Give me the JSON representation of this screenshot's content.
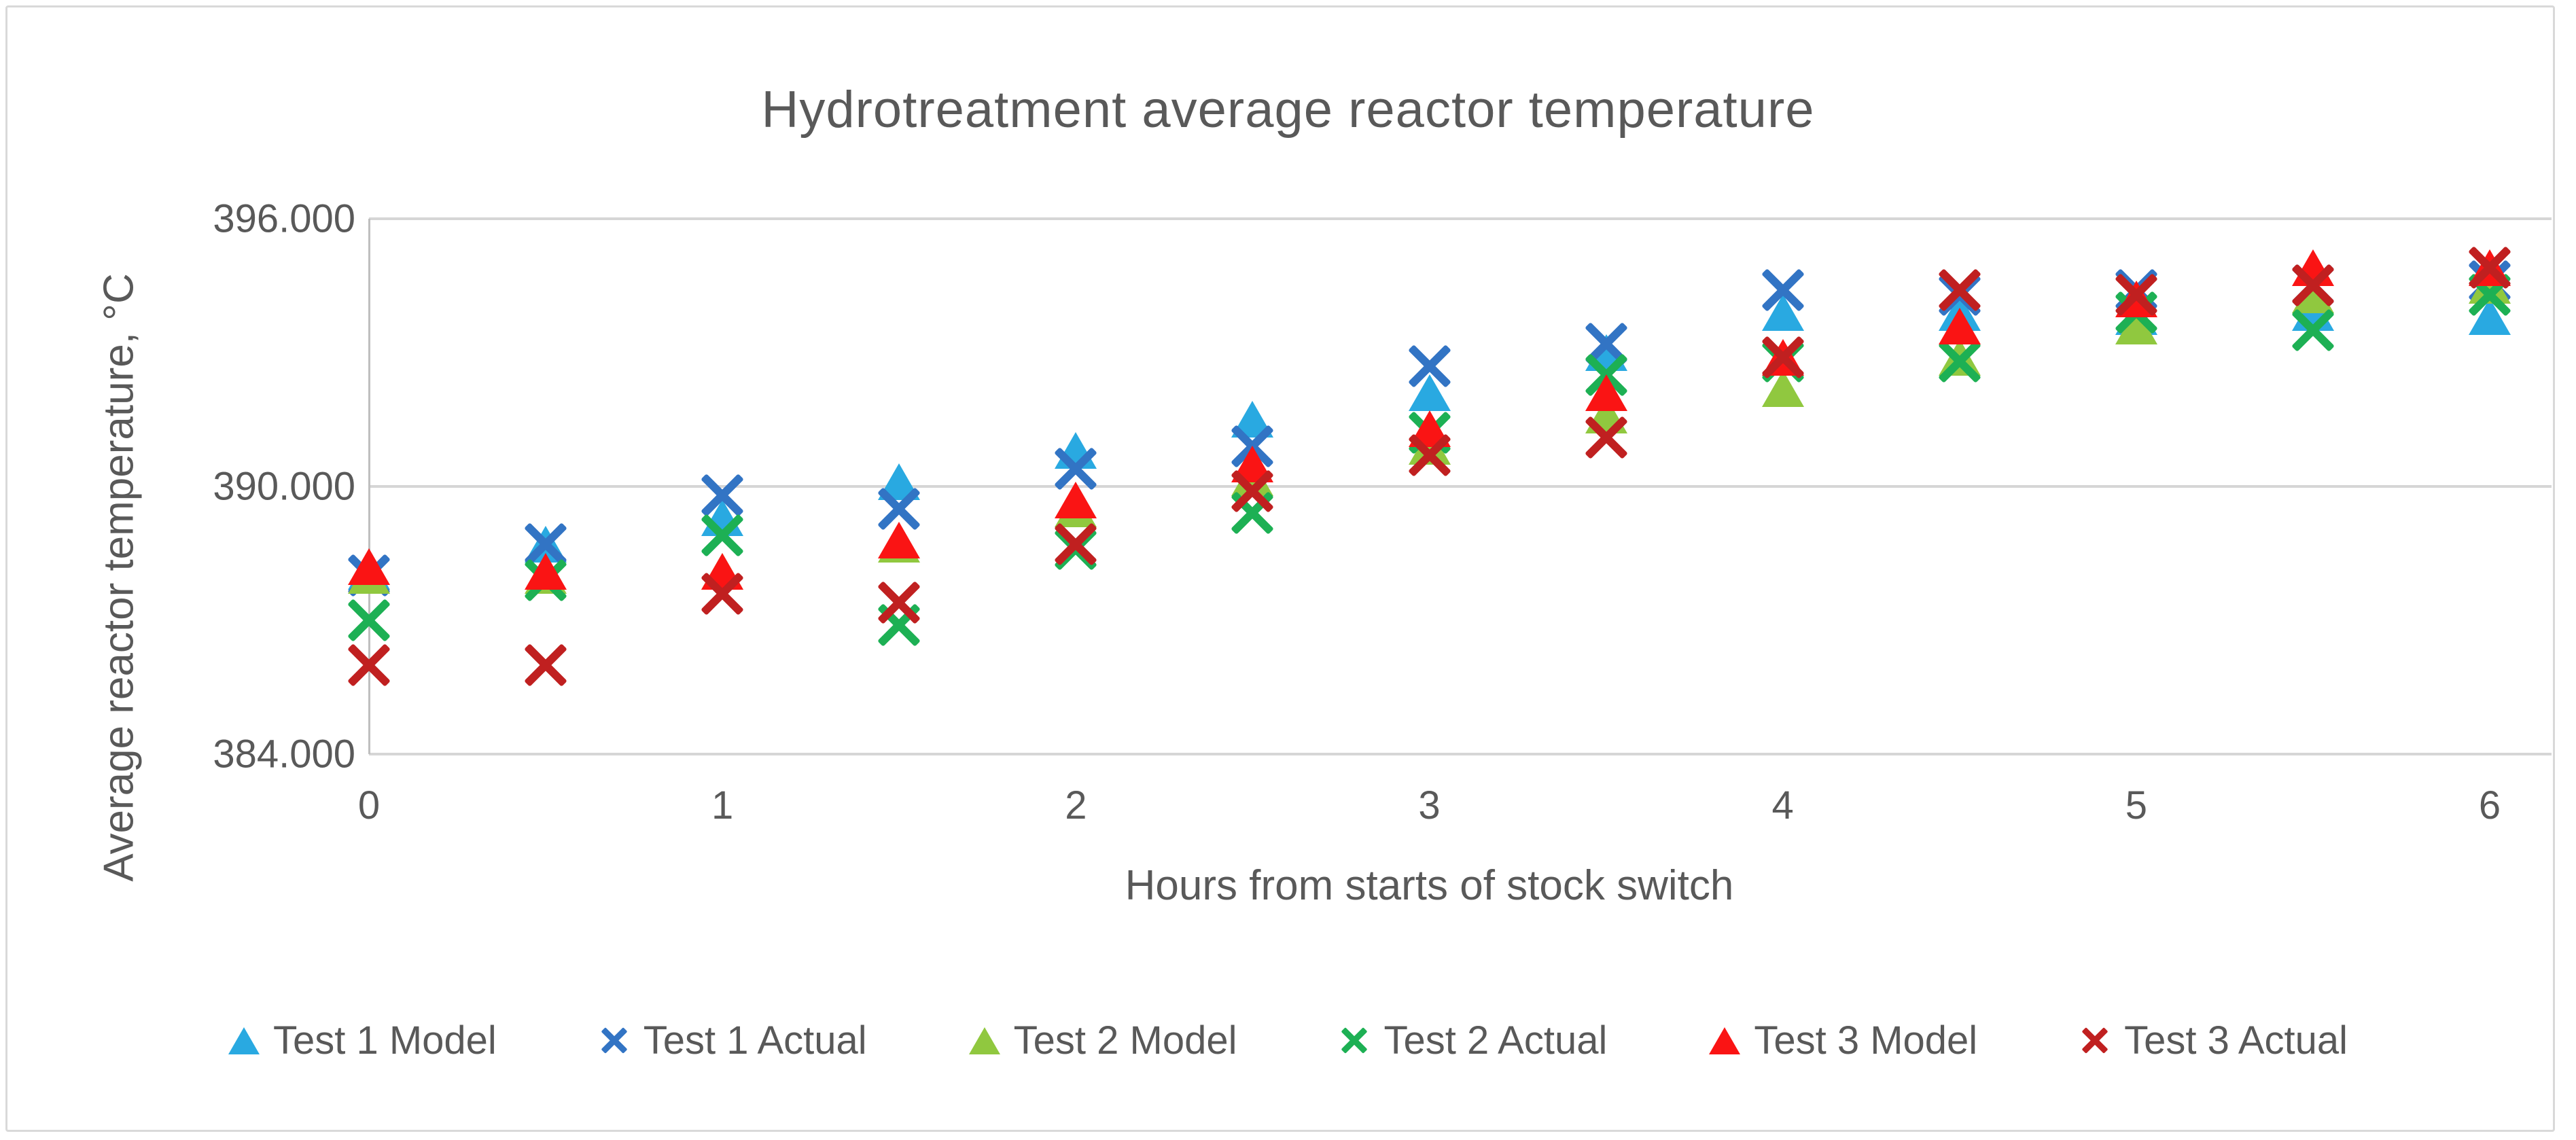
{
  "title": "Hydrotreatment average reactor temperature",
  "axes": {
    "x_label": "Hours from starts of stock switch",
    "y_label": "Average reactor temperature, °C"
  },
  "colors": {
    "gridline": "#D6D6D6",
    "axis_line": "#BFBFBF",
    "text": "#595959"
  },
  "chart_data": {
    "type": "scatter",
    "title": "Hydrotreatment average reactor temperature",
    "xlabel": "Hours from starts of stock switch",
    "ylabel": "Average reactor temperature, °C",
    "xlim": [
      0,
      6
    ],
    "ylim": [
      384,
      396
    ],
    "grid": "horizontal-only",
    "legend_position": "bottom",
    "y_ticks": [
      {
        "value": 396,
        "label": "396.000"
      },
      {
        "value": 390,
        "label": "390.000"
      },
      {
        "value": 384,
        "label": "384.000"
      }
    ],
    "x_ticks": [
      {
        "value": 0,
        "label": "0"
      },
      {
        "value": 1,
        "label": "1"
      },
      {
        "value": 2,
        "label": "2"
      },
      {
        "value": 3,
        "label": "3"
      },
      {
        "value": 4,
        "label": "4"
      },
      {
        "value": 5,
        "label": "5"
      },
      {
        "value": 6,
        "label": "6"
      }
    ],
    "x": [
      0,
      0.5,
      1,
      1.5,
      2,
      2.5,
      3,
      3.5,
      4,
      4.5,
      5,
      5.5,
      6
    ],
    "series": [
      {
        "name": "Test 1 Model",
        "marker": "triangle",
        "color": "#29A9E1",
        "values": [
          388.1,
          388.7,
          389.3,
          390.1,
          390.8,
          391.5,
          392.1,
          393.0,
          393.9,
          393.9,
          393.8,
          393.9,
          393.8
        ]
      },
      {
        "name": "Test 1 Actual",
        "marker": "x",
        "color": "#3274C4",
        "values": [
          388.0,
          388.7,
          389.8,
          389.5,
          390.4,
          390.9,
          392.7,
          393.2,
          394.4,
          394.3,
          394.4,
          394.5,
          394.6
        ]
      },
      {
        "name": "Test 2 Model",
        "marker": "triangle",
        "color": "#90C83F",
        "values": [
          388.0,
          388.0,
          388.1,
          388.7,
          389.5,
          390.2,
          390.9,
          391.6,
          392.2,
          392.9,
          393.6,
          394.3,
          394.5
        ]
      },
      {
        "name": "Test 2 Actual",
        "marker": "x",
        "color": "#1DB054",
        "values": [
          387.0,
          387.9,
          388.9,
          386.9,
          388.6,
          389.4,
          391.2,
          392.5,
          392.8,
          392.8,
          393.9,
          393.5,
          394.3
        ]
      },
      {
        "name": "Test 3 Model",
        "marker": "triangle",
        "color": "#FA1414",
        "values": [
          388.2,
          388.1,
          388.1,
          388.8,
          389.7,
          390.5,
          391.3,
          392.1,
          392.9,
          393.6,
          394.2,
          394.9,
          394.9
        ]
      },
      {
        "name": "Test 3 Actual",
        "marker": "x",
        "color": "#C02020",
        "values": [
          386.0,
          386.0,
          387.6,
          387.4,
          388.7,
          389.9,
          390.7,
          391.1,
          392.9,
          394.4,
          394.3,
          394.5,
          394.9
        ]
      }
    ]
  }
}
